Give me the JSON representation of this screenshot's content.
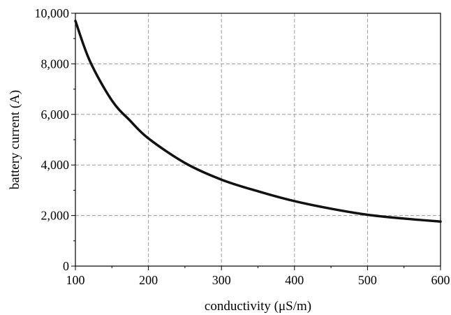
{
  "chart_data": {
    "type": "line",
    "title": "",
    "xlabel": "conductivity (μS/m)",
    "ylabel": "battery current (A)",
    "xlim": [
      100,
      600
    ],
    "ylim": [
      0,
      10000
    ],
    "x_ticks": [
      "100",
      "200",
      "300",
      "400",
      "500",
      "600"
    ],
    "y_ticks": [
      "0",
      "2,000",
      "4,000",
      "6,000",
      "8,000",
      "10,000"
    ],
    "grid": true,
    "line_color": "#111111",
    "series": [
      {
        "x": [
          100,
          120,
          150,
          175,
          200,
          250,
          300,
          350,
          400,
          450,
          500,
          550,
          600
        ],
        "y": [
          9700,
          8100,
          6550,
          5750,
          5050,
          4080,
          3420,
          2960,
          2570,
          2270,
          2030,
          1880,
          1760
        ]
      }
    ]
  }
}
